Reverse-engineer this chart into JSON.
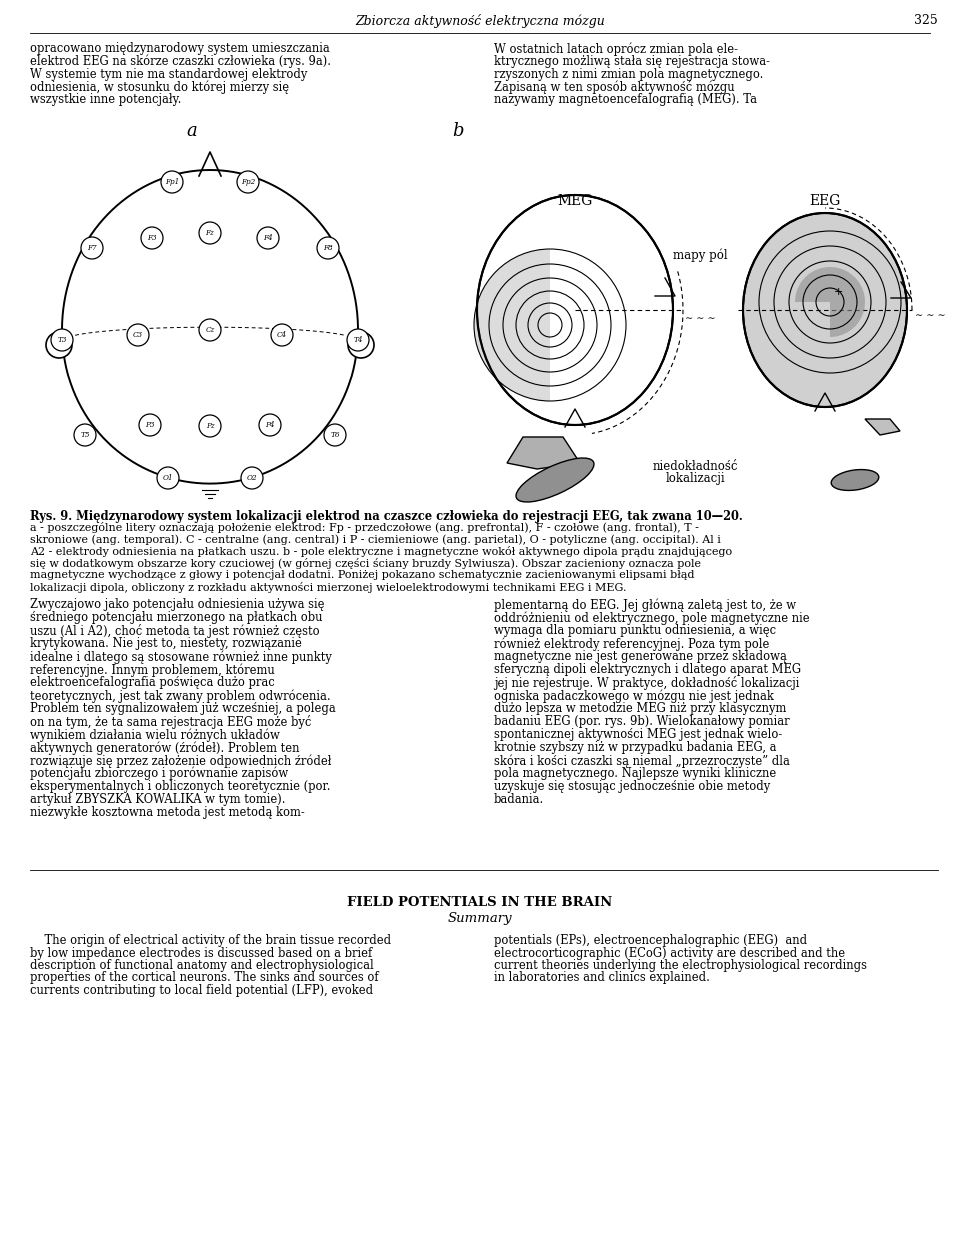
{
  "page_title": "Zbiorcza aktywność elektryczna mózgu",
  "page_number": "325",
  "background_color": "#ffffff",
  "header_text": "Zbiorcza aktywność elektryczna mózgu",
  "col1_para1": "opracowano międzynarodowy system umieszczania elektrod EEG na skórze czaszki człowieka (rys. 9a). W systemie tym nie ma standardowej elektrody odniesienia, w stosunku do której mierzy się wszystkie inne potencjały.",
  "col2_para1": "W ostatnich latach oprócz zmian pola ele-\nktrycznego możliwą stała się rejestracja stowa-\nrzyszonych z nimi zmian pola magnetycznego.\nZapisaną w ten sposób aktywność mózgu\nnazywa my magnetoencefalografią (MEG). Ta",
  "fig_label_a": "a",
  "fig_label_b": "b",
  "fig_meg_label": "MEG",
  "fig_eeg_label": "EEG",
  "fig_mapy_pol": "mapy pól",
  "fig_niedokladnosc": "niedokładność\nlokalizacji",
  "caption_bold": "Rys. 9. Międzynarodowy system lokalizacji elektrod na czaszce człowieka do rejestracji EEG, tak zwana 10—20.",
  "caption_line2": "a - poszczególne litery oznaczają położenie elektrod: Fp - przedczołowe (ang. prefrontal), F - czołowe (ang. frontal), T -",
  "caption_line3": "skroniowe (ang. temporal). C - centralne (ang. central) i P - ciemieniowe (ang. parietal), O - potyliczne (ang. occipital). Al i",
  "caption_line4": "A2 - elektrody odniesienia na płatkach uszu. b - pole elektryczne i magnetyczne wokół aktywnego dipola prądu znajdującego",
  "caption_line5": "się w dodatkowym obszarze kory czuciowej (w górnej części ściany bruzdy Sylwiusza). Obszar zacieniony oznacza pole",
  "caption_line6": "magnetyczne wychodzące z głowy i potencjał dodatni. Poniżej pokazano schematycznie zacieniowanymi elipsami błąd",
  "caption_line7": "lokalizacji dipola, obliczony z rozkładu aktywności mierzonej wieloelektrodowymi technikami EEG i MEG.",
  "col1_body_lines": [
    "Zwyczajowo jako potencjału odniesienia używa się",
    "średniego potencjału mierzonego na płatkach obu",
    "uszu (Al i A2), choć metoda ta jest również często",
    "krytykowana. Nie jest to, niestety, rozwiązanie",
    "idealne i dlatego są stosowane również inne punkty",
    "referencyjne. Innym problemem, któremu",
    "elektroencefalografia poświęca dużo prac",
    "teoretycznych, jest tak zwany problem odwrócenia.",
    "Problem ten sygnalizowałem już wcześniej, a polega",
    "on na tym, że ta sama rejestracja EEG może być",
    "wynikiem działania wielu różnych układów",
    "aktywnych generatorów (źródeł). Problem ten",
    "rozwiązuje się przez założenie odpowiednich źródeł",
    "potencjału zbiorczego i porównanie zapisów",
    "eksperymentalnych i obliczonych teoretycznie (por.",
    "artykuł ZBYSZKA KOWALIKA w tym tomie).",
    "niezwykłe kosztowna metoda jest metodą kom-"
  ],
  "col2_body_lines": [
    "plementarną do EEG. Jej główną zaletą jest to, że w",
    "oddróżnieniu od elektrycznego, pole magnetyczne nie",
    "wymaga dla pomiaru punktu odniesienia, a więc",
    "również elektrody referencyjnej. Poza tym pole",
    "magnetyczne nie jest generowane przez składową",
    "sferyczną dipoli elektrycznych i dlatego aparat MEG",
    "jej nie rejestruje. W praktyce, dokładność lokalizacji",
    "ogniska padaczkowego w mózgu nie jest jednak",
    "dużo lepsza w metodzie MEG niż przy klasycznym",
    "badaniu EEG (por. rys. 9b). Wielokanałowy pomiar",
    "spontanicznej aktywności MEG jest jednak wielo-",
    "krotnie szybszy niż w przypadku badania EEG, a",
    "skóra i kości czaszki są niemal „przezroczyste” dla",
    "pola magnetycznego. Najlepsze wyniki kliniczne",
    "uzyskuje się stosując jednocześnie obie metody",
    "badania."
  ],
  "summary_title": "FIELD POTENTIALS IN THE BRAIN",
  "summary_subtitle": "Summary",
  "summary_col1_lines": [
    "    The origin of electrical activity of the brain tissue recorded",
    "by low impedance electrodes is discussed based on a brief",
    "description of functional anatomy and electrophysiological",
    "properties of the cortical neurons. The sinks and sources of",
    "currents contributing to local field potential (LFP), evoked"
  ],
  "summary_col2_lines": [
    "potentials (EPs), electroencephalographic (EEG)  and",
    "electrocorticographic (ECoG) activity are described and the",
    "current theories underlying the electrophysiological recordings",
    "in laboratories and clinics explained."
  ]
}
